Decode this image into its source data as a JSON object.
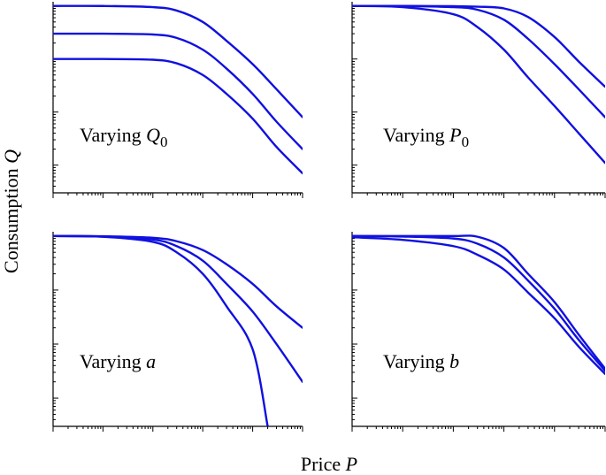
{
  "figure": {
    "xlabel_text": "Price ",
    "xlabel_var": "P",
    "ylabel_text": "Consumption ",
    "ylabel_var": "Q",
    "line_color": "#1010e0",
    "axis_color": "#000000"
  },
  "chart_data": [
    {
      "type": "line",
      "panel": "top-left",
      "label_text": "Varying ",
      "label_var": "Q",
      "label_sub": "0",
      "xscale": "log",
      "yscale": "log",
      "xlim": [
        0.01,
        1000
      ],
      "ylim": [
        0.0003,
        1.2
      ],
      "grid": false,
      "series": [
        {
          "x": [
            0.01,
            0.1,
            1,
            3,
            10,
            30,
            100,
            300,
            1000
          ],
          "y": [
            1.0,
            1.0,
            0.95,
            0.82,
            0.5,
            0.22,
            0.08,
            0.027,
            0.008
          ]
        },
        {
          "x": [
            0.01,
            0.1,
            1,
            3,
            10,
            30,
            100,
            300,
            1000
          ],
          "y": [
            0.3,
            0.3,
            0.29,
            0.25,
            0.15,
            0.066,
            0.022,
            0.0066,
            0.002
          ]
        },
        {
          "x": [
            0.01,
            0.1,
            1,
            3,
            10,
            30,
            100,
            300,
            1000
          ],
          "y": [
            0.1,
            0.1,
            0.097,
            0.083,
            0.05,
            0.022,
            0.0075,
            0.0022,
            0.0007
          ]
        }
      ]
    },
    {
      "type": "line",
      "panel": "top-right",
      "label_text": "Varying ",
      "label_var": "P",
      "label_sub": "0",
      "xscale": "log",
      "yscale": "log",
      "xlim": [
        0.01,
        1000
      ],
      "ylim": [
        0.0003,
        1.2
      ],
      "grid": false,
      "series": [
        {
          "x": [
            0.01,
            0.1,
            1,
            3,
            10,
            30,
            100,
            300,
            1000
          ],
          "y": [
            1.0,
            0.95,
            0.7,
            0.4,
            0.15,
            0.045,
            0.013,
            0.004,
            0.0011
          ]
        },
        {
          "x": [
            0.01,
            0.1,
            1,
            3,
            10,
            30,
            100,
            300,
            1000
          ],
          "y": [
            1.0,
            1.0,
            0.95,
            0.85,
            0.55,
            0.24,
            0.08,
            0.027,
            0.008
          ]
        },
        {
          "x": [
            0.01,
            0.1,
            1,
            3,
            10,
            30,
            100,
            300,
            1000
          ],
          "y": [
            1.0,
            1.0,
            0.99,
            0.97,
            0.9,
            0.62,
            0.26,
            0.09,
            0.03
          ]
        }
      ]
    },
    {
      "type": "line",
      "panel": "bottom-left",
      "label_text": "Varying ",
      "label_var": "a",
      "label_sub": "",
      "xscale": "log",
      "yscale": "log",
      "xlim": [
        0.01,
        1000
      ],
      "ylim": [
        0.0003,
        1.2
      ],
      "grid": false,
      "series": [
        {
          "x": [
            0.01,
            0.1,
            1,
            3,
            10,
            30,
            100,
            300,
            1000
          ],
          "y": [
            1.0,
            0.99,
            0.93,
            0.8,
            0.55,
            0.3,
            0.13,
            0.05,
            0.02
          ]
        },
        {
          "x": [
            0.01,
            0.1,
            1,
            3,
            10,
            30,
            100,
            300,
            1000
          ],
          "y": [
            1.0,
            0.98,
            0.86,
            0.65,
            0.35,
            0.13,
            0.04,
            0.01,
            0.002
          ]
        },
        {
          "x": [
            0.01,
            0.1,
            1,
            3,
            10,
            30,
            100,
            200
          ],
          "y": [
            1.0,
            0.97,
            0.78,
            0.5,
            0.2,
            0.05,
            0.008,
            0.0003
          ]
        }
      ]
    },
    {
      "type": "line",
      "panel": "bottom-right",
      "label_text": "Varying ",
      "label_var": "b",
      "label_sub": "",
      "xscale": "log",
      "yscale": "log",
      "xlim": [
        0.01,
        1000
      ],
      "ylim": [
        0.0003,
        1.2
      ],
      "grid": false,
      "series": [
        {
          "x": [
            0.01,
            0.1,
            1,
            3,
            10,
            30,
            100,
            300,
            1000
          ],
          "y": [
            1.0,
            1.0,
            1.0,
            0.97,
            0.6,
            0.2,
            0.06,
            0.015,
            0.0035
          ]
        },
        {
          "x": [
            0.01,
            0.1,
            1,
            3,
            10,
            30,
            100,
            300,
            1000
          ],
          "y": [
            1.0,
            0.98,
            0.9,
            0.72,
            0.4,
            0.15,
            0.045,
            0.012,
            0.0032
          ]
        },
        {
          "x": [
            0.01,
            0.1,
            1,
            3,
            10,
            30,
            100,
            300,
            1000
          ],
          "y": [
            0.95,
            0.85,
            0.65,
            0.45,
            0.24,
            0.09,
            0.03,
            0.009,
            0.0028
          ]
        }
      ]
    }
  ]
}
